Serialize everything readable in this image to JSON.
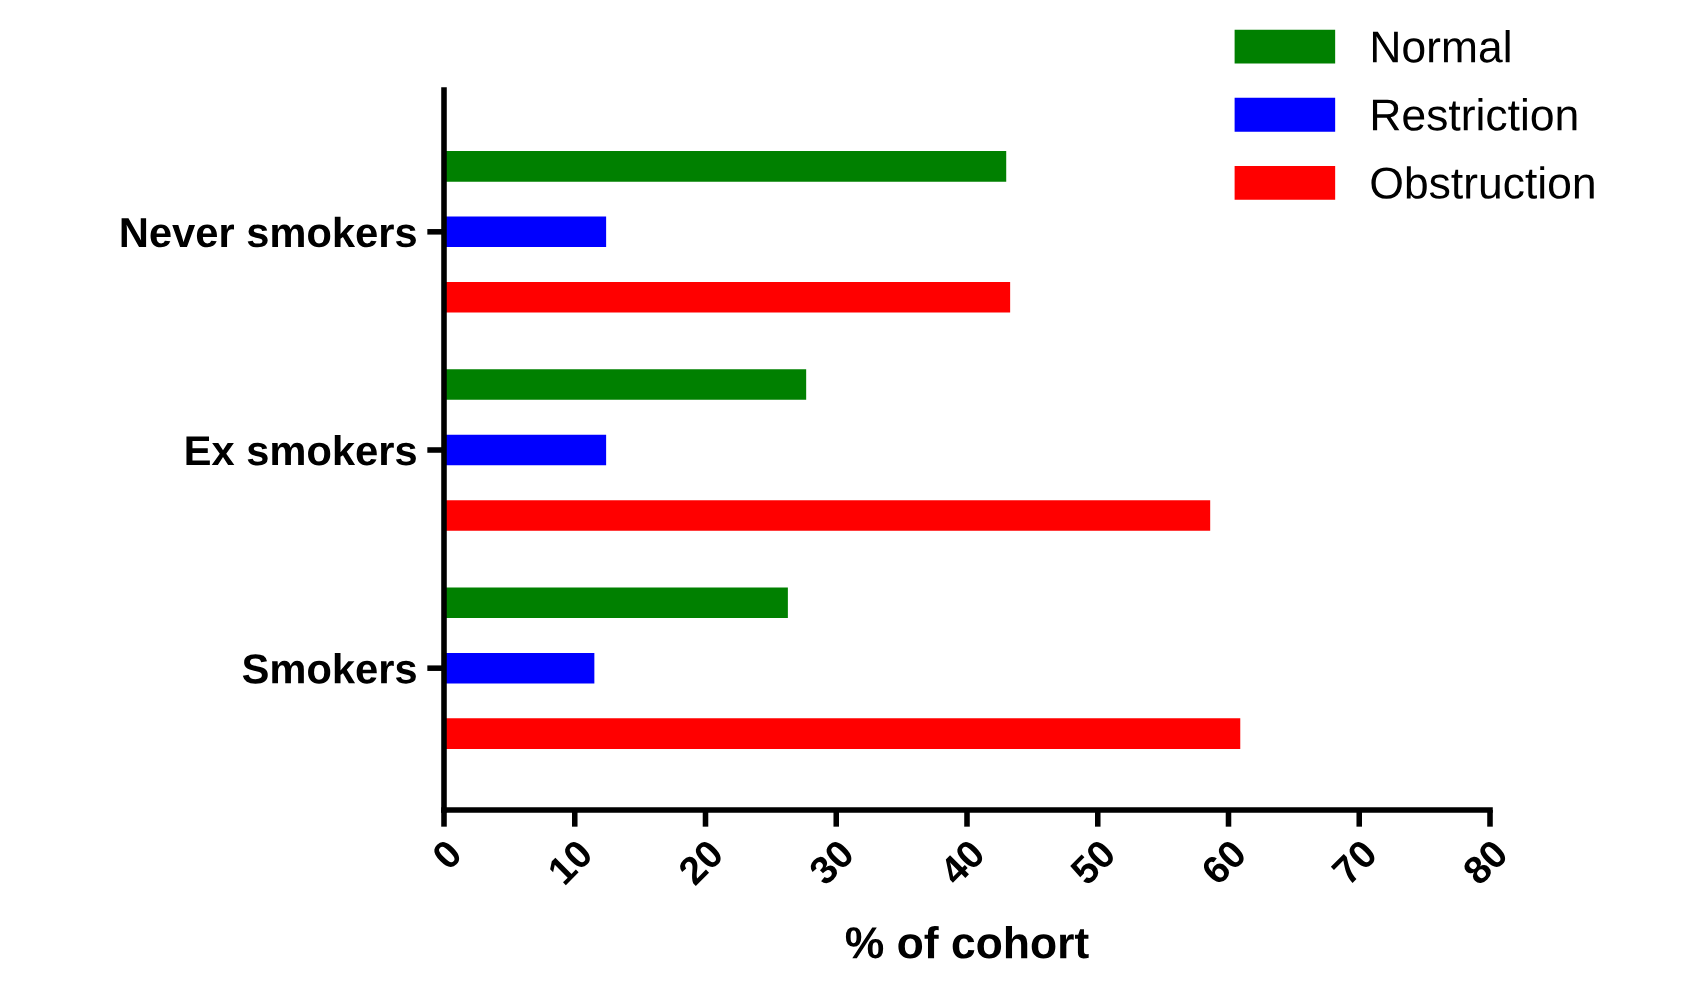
{
  "chart_data": {
    "type": "bar",
    "orientation": "horizontal",
    "xlabel": "% of cohort",
    "categories": [
      "Never smokers",
      "Ex smokers",
      "Smokers"
    ],
    "series": [
      {
        "name": "Normal",
        "color": "#008000",
        "values": [
          43.0,
          27.7,
          26.3
        ]
      },
      {
        "name": "Restriction",
        "color": "#0000ff",
        "values": [
          12.4,
          12.4,
          11.5
        ]
      },
      {
        "name": "Obstruction",
        "color": "#ff0000",
        "values": [
          43.3,
          58.6,
          60.9
        ]
      }
    ],
    "xlim": [
      0,
      80
    ],
    "xticks": [
      0,
      10,
      20,
      30,
      40,
      50,
      60,
      70,
      80
    ],
    "grid": false,
    "legend": "top right"
  }
}
